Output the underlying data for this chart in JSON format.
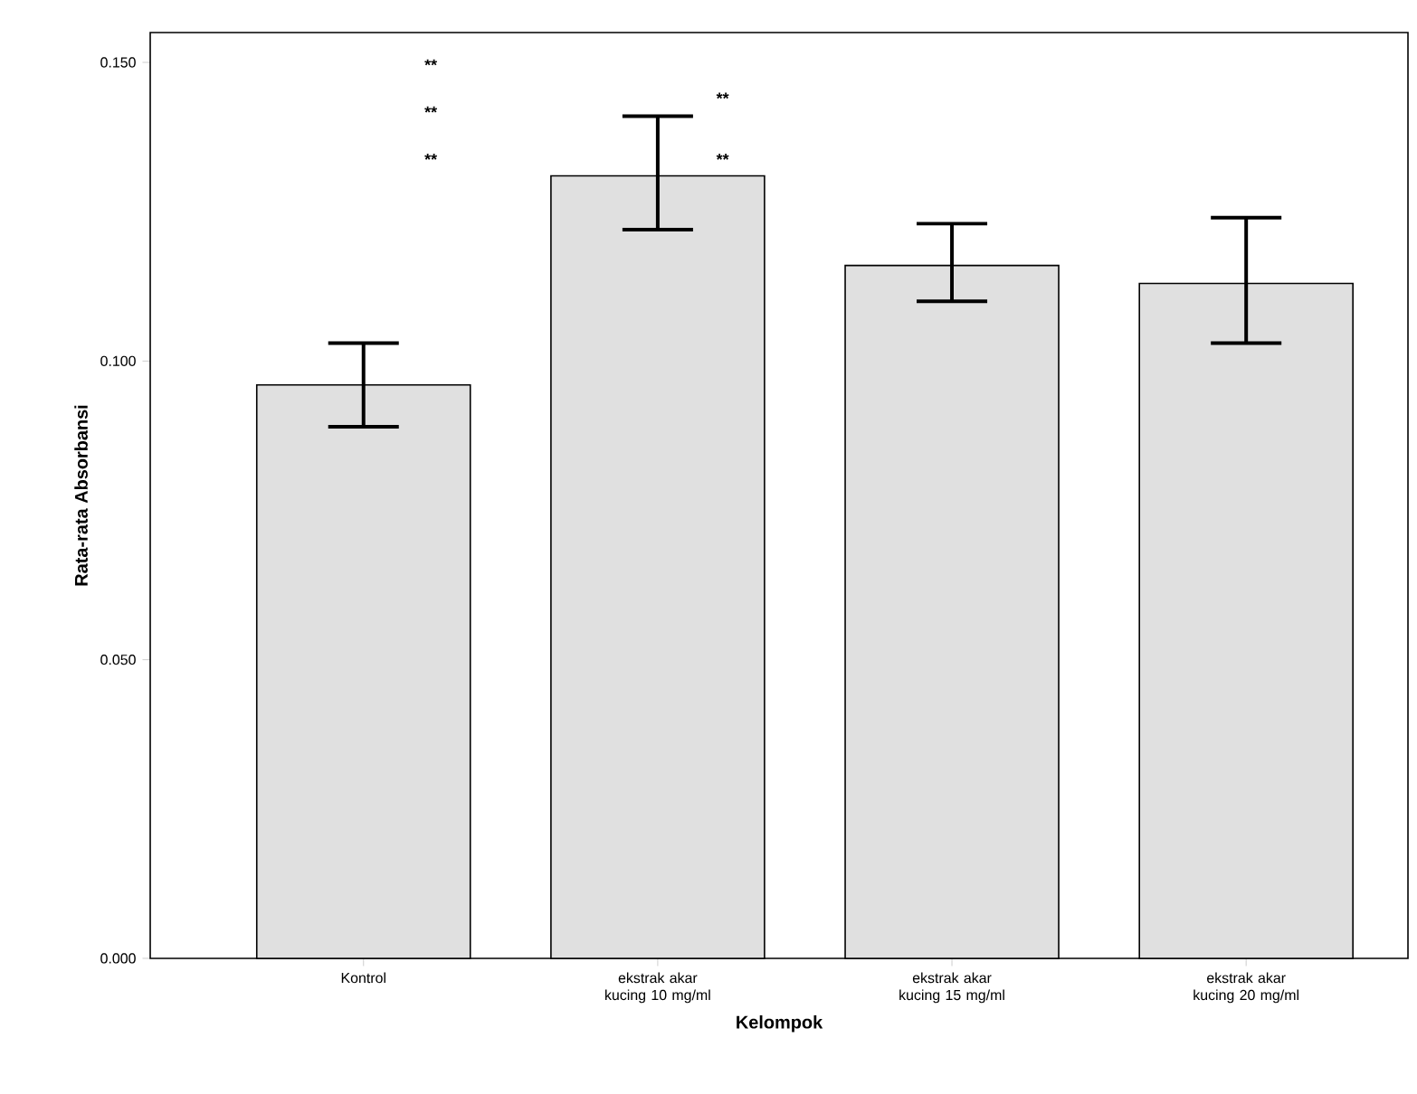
{
  "chart_data": {
    "type": "bar",
    "xlabel": "Kelompok",
    "ylabel": "Rata-rata Absorbansi",
    "categories": [
      "Kontrol",
      "ekstrak akar kucing 10 mg/ml",
      "ekstrak akar kucing 15 mg/ml",
      "ekstrak akar kucing 20 mg/ml"
    ],
    "values": [
      0.096,
      0.131,
      0.116,
      0.113
    ],
    "errors": [
      [
        0.089,
        0.103
      ],
      [
        0.122,
        0.141
      ],
      [
        0.11,
        0.123
      ],
      [
        0.103,
        0.124
      ]
    ],
    "color": "#e0e0e0",
    "ylim": [
      0,
      0.155
    ],
    "yticks": [
      {
        "value": 0,
        "label": "0.000"
      },
      {
        "value": 0.05,
        "label": "0.050"
      },
      {
        "value": 0.1,
        "label": "0.100"
      },
      {
        "value": 0.15,
        "label": "0.150"
      }
    ],
    "grid": false,
    "annotations": [
      "**",
      "**",
      "**",
      "**",
      "**"
    ]
  }
}
